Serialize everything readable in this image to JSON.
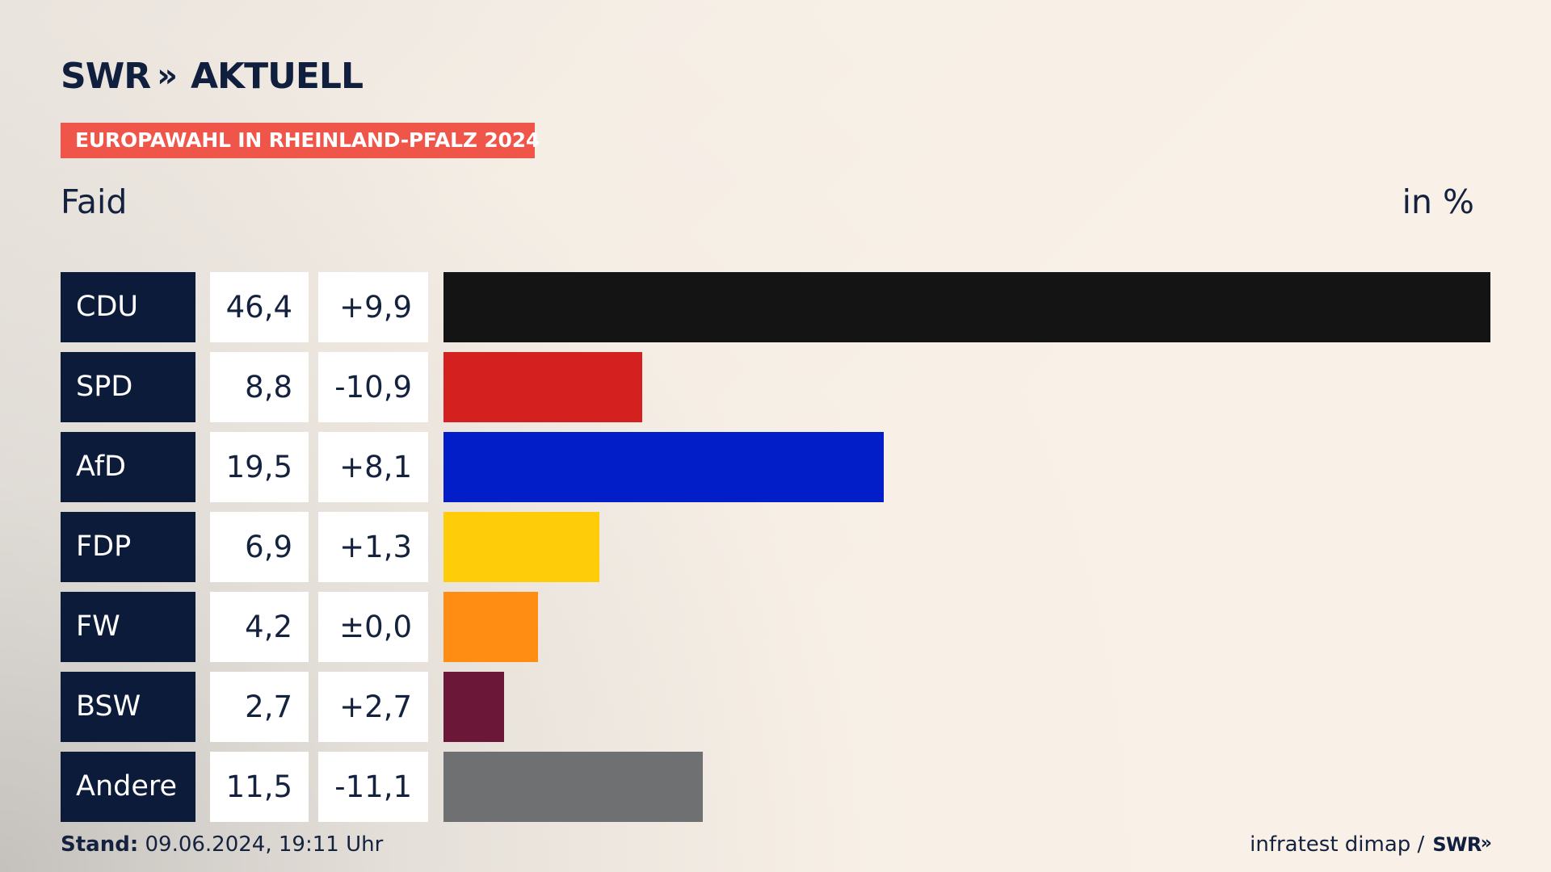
{
  "header": {
    "logo_brand": "SWR",
    "logo_chevrons": "»",
    "logo_text": "AKTUELL",
    "badge_text": "EUROPAWAHL IN RHEINLAND-PFALZ 2024",
    "subtitle": "Faid",
    "unit": "in %"
  },
  "footer": {
    "stand_label": "Stand:",
    "stand_value": " 09.06.2024, 19:11 Uhr",
    "source": "infratest dimap /",
    "brand": "SWR",
    "brand_chevrons": "»"
  },
  "colors": {
    "background": "#f7efe6",
    "badge": "#f0554a",
    "party_box": "#0d1b3a",
    "text": "#15223f"
  },
  "chart_data": {
    "type": "bar",
    "title": "EUROPAWAHL IN RHEINLAND-PFALZ 2024",
    "subtitle": "Faid",
    "unit": "in %",
    "categories": [
      "CDU",
      "SPD",
      "AfD",
      "FDP",
      "FW",
      "BSW",
      "Andere"
    ],
    "series": [
      {
        "values": [
          46.4,
          8.8,
          19.5,
          6.9,
          4.2,
          2.7,
          11.5
        ]
      }
    ],
    "value_labels": [
      "46,4",
      "8,8",
      "19,5",
      "6,9",
      "4,2",
      "2,7",
      "11,5"
    ],
    "change_labels": [
      "+9,9",
      "-10,9",
      "+8,1",
      "+1,3",
      "±0,0",
      "+2,7",
      "-11,1"
    ],
    "colors": [
      "#141414",
      "#d52020",
      "#011ec8",
      "#ffcc0a",
      "#ff8c13",
      "#6b1838",
      "#6f7072"
    ],
    "xlim": [
      0,
      46.4
    ],
    "legend": "none",
    "grid": false
  }
}
